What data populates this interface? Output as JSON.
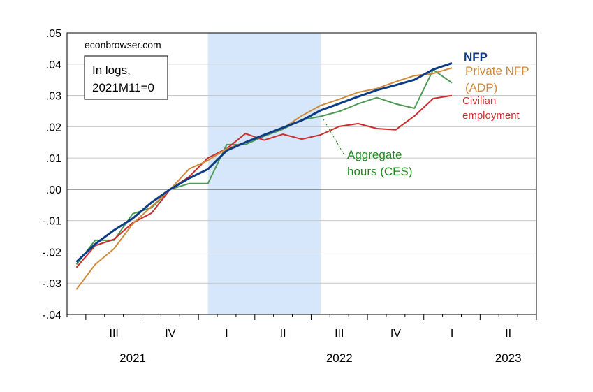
{
  "chart_data": {
    "type": "line",
    "watermark": "econbrowser.com",
    "note": [
      "In logs,",
      "2021M11=0"
    ],
    "ylim": [
      -0.04,
      0.05
    ],
    "y_ticks": [
      0.05,
      0.04,
      0.03,
      0.02,
      0.01,
      0.0,
      -0.01,
      -0.02,
      -0.03,
      -0.04
    ],
    "y_tick_labels": [
      ".05",
      ".04",
      ".03",
      ".02",
      ".01",
      ".00",
      "-.01",
      "-.02",
      "-.03",
      "-.04"
    ],
    "x_start": "2021-06",
    "x_end": "2023-06",
    "quarter_labels": [
      {
        "label": "III",
        "month": "2021-08"
      },
      {
        "label": "IV",
        "month": "2021-11"
      },
      {
        "label": "I",
        "month": "2022-02"
      },
      {
        "label": "II",
        "month": "2022-05"
      },
      {
        "label": "III",
        "month": "2022-08"
      },
      {
        "label": "IV",
        "month": "2022-11"
      },
      {
        "label": "I",
        "month": "2023-02"
      },
      {
        "label": "II",
        "month": "2023-05"
      }
    ],
    "year_labels": [
      {
        "label": "2021",
        "month": "2021-09"
      },
      {
        "label": "2022",
        "month": "2022-08"
      },
      {
        "label": "2023",
        "month": "2023-05"
      }
    ],
    "shaded_region": {
      "from": "2022-01",
      "to": "2022-07",
      "color": "#d6e6fb"
    },
    "months": [
      "2021-06",
      "2021-07",
      "2021-08",
      "2021-09",
      "2021-10",
      "2021-11",
      "2021-12",
      "2022-01",
      "2022-02",
      "2022-03",
      "2022-04",
      "2022-05",
      "2022-06",
      "2022-07",
      "2022-08",
      "2022-09",
      "2022-10",
      "2022-11",
      "2022-12",
      "2023-01",
      "2023-02",
      "2023-03"
    ],
    "series": [
      {
        "name": "NFP",
        "color": "#0d3c85",
        "width": 3,
        "label_lines": [
          "NFP"
        ],
        "label_bold": true,
        "values": [
          -0.0232,
          -0.0175,
          -0.0131,
          -0.0093,
          -0.0042,
          0.0,
          0.0035,
          0.0064,
          0.0124,
          0.015,
          0.0174,
          0.0197,
          0.022,
          0.0252,
          0.0274,
          0.0296,
          0.0317,
          0.0333,
          0.035,
          0.0383,
          0.0403,
          null
        ]
      },
      {
        "name": "Private NFP (ADP)",
        "color": "#d08a3a",
        "width": 2,
        "label_lines": [
          "Private NFP",
          "(ADP)"
        ],
        "label_bold": false,
        "values": [
          -0.032,
          -0.024,
          -0.019,
          -0.011,
          -0.0055,
          0.0,
          0.0065,
          0.0092,
          0.013,
          0.015,
          0.0175,
          0.0195,
          0.0235,
          0.0268,
          0.0288,
          0.031,
          0.0322,
          0.0344,
          0.0363,
          0.037,
          0.0388,
          null
        ]
      },
      {
        "name": "Civilian employment",
        "color": "#cc2e2e",
        "width": 2,
        "label_lines": [
          "Civilian",
          "employment"
        ],
        "label_bold": false,
        "values": [
          -0.025,
          -0.018,
          -0.016,
          -0.0107,
          -0.0076,
          0.0,
          0.004,
          0.01,
          0.013,
          0.0178,
          0.0157,
          0.0176,
          0.016,
          0.0174,
          0.0201,
          0.021,
          0.0194,
          0.019,
          0.0234,
          0.029,
          0.03,
          null
        ]
      },
      {
        "name": "Aggregate hours (CES)",
        "color": "#4e9a55",
        "width": 2,
        "label_lines": [
          "Aggregate",
          "hours (CES)"
        ],
        "label_bold": false,
        "label_text_color": "#1c8a1c",
        "values": [
          -0.024,
          -0.0163,
          -0.0163,
          -0.0078,
          -0.0059,
          0.0,
          0.0018,
          0.0018,
          0.0143,
          0.0143,
          0.017,
          0.0192,
          0.0222,
          0.0233,
          0.0249,
          0.0273,
          0.0293,
          0.0273,
          0.0259,
          0.0382,
          0.034,
          null
        ]
      }
    ]
  }
}
